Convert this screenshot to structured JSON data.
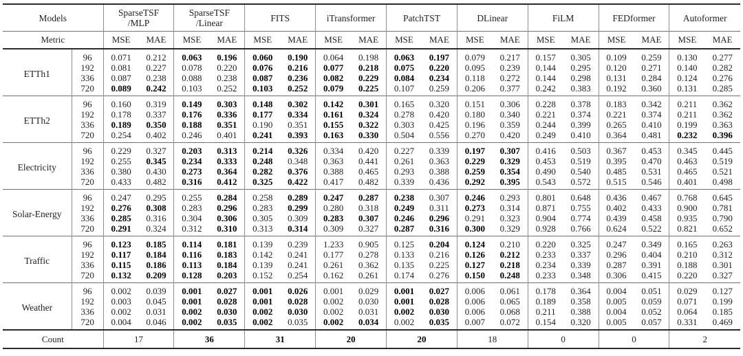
{
  "table": {
    "header": {
      "models_label": "Models",
      "metric_label": "Metric",
      "models": [
        {
          "lines": [
            "SparseTSF",
            "/MLP"
          ]
        },
        {
          "lines": [
            "SparseTSF",
            "/Linear"
          ]
        },
        {
          "lines": [
            "FITS"
          ]
        },
        {
          "lines": [
            "iTransformer"
          ]
        },
        {
          "lines": [
            "PatchTST"
          ]
        },
        {
          "lines": [
            "DLinear"
          ]
        },
        {
          "lines": [
            "FiLM"
          ]
        },
        {
          "lines": [
            "FEDformer"
          ]
        },
        {
          "lines": [
            "Autoformer"
          ]
        }
      ],
      "metrics": [
        "MSE",
        "MAE"
      ]
    },
    "datasets": [
      {
        "name": "ETTh1",
        "rows": [
          {
            "h": "96",
            "v": [
              "0.071",
              "0.212",
              "0.063",
              "0.196",
              "0.060",
              "0.190",
              "0.064",
              "0.198",
              "0.063",
              "0.197",
              "0.079",
              "0.217",
              "0.157",
              "0.305",
              "0.109",
              "0.259",
              "0.130",
              "0.277"
            ],
            "b": "001111001100000000"
          },
          {
            "h": "192",
            "v": [
              "0.081",
              "0.227",
              "0.078",
              "0.220",
              "0.076",
              "0.216",
              "0.077",
              "0.218",
              "0.075",
              "0.220",
              "0.095",
              "0.239",
              "0.144",
              "0.295",
              "0.120",
              "0.271",
              "0.140",
              "0.282"
            ],
            "b": "000011111100000000"
          },
          {
            "h": "336",
            "v": [
              "0.087",
              "0.238",
              "0.088",
              "0.238",
              "0.087",
              "0.236",
              "0.082",
              "0.229",
              "0.084",
              "0.234",
              "0.118",
              "0.272",
              "0.144",
              "0.298",
              "0.131",
              "0.284",
              "0.124",
              "0.276"
            ],
            "b": "000011111100000000"
          },
          {
            "h": "720",
            "v": [
              "0.089",
              "0.242",
              "0.103",
              "0.252",
              "0.103",
              "0.252",
              "0.079",
              "0.225",
              "0.107",
              "0.259",
              "0.206",
              "0.377",
              "0.242",
              "0.383",
              "0.192",
              "0.360",
              "0.131",
              "0.285"
            ],
            "b": "110011110000000000"
          }
        ]
      },
      {
        "name": "ETTh2",
        "rows": [
          {
            "h": "96",
            "v": [
              "0.160",
              "0.319",
              "0.149",
              "0.303",
              "0.148",
              "0.302",
              "0.142",
              "0.301",
              "0.165",
              "0.320",
              "0.151",
              "0.306",
              "0.228",
              "0.378",
              "0.183",
              "0.342",
              "0.211",
              "0.362"
            ],
            "b": "001111110000000000"
          },
          {
            "h": "192",
            "v": [
              "0.178",
              "0.337",
              "0.176",
              "0.336",
              "0.177",
              "0.334",
              "0.161",
              "0.324",
              "0.278",
              "0.420",
              "0.180",
              "0.340",
              "0.221",
              "0.374",
              "0.221",
              "0.374",
              "0.211",
              "0.362"
            ],
            "b": "001111110000000000"
          },
          {
            "h": "336",
            "v": [
              "0.189",
              "0.350",
              "0.188",
              "0.351",
              "0.190",
              "0.351",
              "0.155",
              "0.322",
              "0.303",
              "0.425",
              "0.196",
              "0.359",
              "0.244",
              "0.399",
              "0.265",
              "0.410",
              "0.199",
              "0.363"
            ],
            "b": "111100110000000000"
          },
          {
            "h": "720",
            "v": [
              "0.254",
              "0.402",
              "0.246",
              "0.401",
              "0.241",
              "0.393",
              "0.163",
              "0.330",
              "0.504",
              "0.556",
              "0.270",
              "0.420",
              "0.249",
              "0.410",
              "0.364",
              "0.481",
              "0.232",
              "0.396"
            ],
            "b": "000011110000000011"
          }
        ]
      },
      {
        "name": "Electricity",
        "rows": [
          {
            "h": "96",
            "v": [
              "0.229",
              "0.327",
              "0.203",
              "0.313",
              "0.214",
              "0.326",
              "0.334",
              "0.420",
              "0.227",
              "0.339",
              "0.197",
              "0.307",
              "0.416",
              "0.503",
              "0.367",
              "0.453",
              "0.345",
              "0.445"
            ],
            "b": "001111000011000000"
          },
          {
            "h": "192",
            "v": [
              "0.255",
              "0.345",
              "0.234",
              "0.333",
              "0.248",
              "0.348",
              "0.363",
              "0.441",
              "0.261",
              "0.363",
              "0.229",
              "0.329",
              "0.453",
              "0.519",
              "0.395",
              "0.470",
              "0.463",
              "0.519"
            ],
            "b": "011110000011000000"
          },
          {
            "h": "336",
            "v": [
              "0.380",
              "0.430",
              "0.273",
              "0.364",
              "0.282",
              "0.376",
              "0.388",
              "0.465",
              "0.293",
              "0.388",
              "0.259",
              "0.354",
              "0.490",
              "0.540",
              "0.485",
              "0.531",
              "0.465",
              "0.521"
            ],
            "b": "001111000011000000"
          },
          {
            "h": "720",
            "v": [
              "0.433",
              "0.482",
              "0.316",
              "0.412",
              "0.325",
              "0.422",
              "0.417",
              "0.482",
              "0.339",
              "0.436",
              "0.292",
              "0.395",
              "0.543",
              "0.572",
              "0.515",
              "0.546",
              "0.401",
              "0.498"
            ],
            "b": "001111000011000000"
          }
        ]
      },
      {
        "name": "Solar-Energy",
        "rows": [
          {
            "h": "96",
            "v": [
              "0.247",
              "0.295",
              "0.255",
              "0.284",
              "0.258",
              "0.289",
              "0.247",
              "0.287",
              "0.238",
              "0.307",
              "0.246",
              "0.293",
              "0.801",
              "0.648",
              "0.436",
              "0.467",
              "0.768",
              "0.645"
            ],
            "b": "000101111010000000"
          },
          {
            "h": "192",
            "v": [
              "0.276",
              "0.308",
              "0.283",
              "0.296",
              "0.283",
              "0.299",
              "0.280",
              "0.318",
              "0.249",
              "0.311",
              "0.273",
              "0.314",
              "0.871",
              "0.755",
              "0.402",
              "0.433",
              "0.900",
              "0.781"
            ],
            "b": "110101001010000000"
          },
          {
            "h": "336",
            "v": [
              "0.285",
              "0.316",
              "0.304",
              "0.306",
              "0.305",
              "0.309",
              "0.283",
              "0.307",
              "0.246",
              "0.296",
              "0.291",
              "0.323",
              "0.904",
              "0.774",
              "0.439",
              "0.458",
              "0.935",
              "0.790"
            ],
            "b": "100100111100000000"
          },
          {
            "h": "720",
            "v": [
              "0.291",
              "0.324",
              "0.312",
              "0.310",
              "0.313",
              "0.314",
              "0.309",
              "0.327",
              "0.287",
              "0.316",
              "0.300",
              "0.329",
              "0.928",
              "0.766",
              "0.624",
              "0.522",
              "0.821",
              "0.652"
            ],
            "b": "100101001110000000"
          }
        ]
      },
      {
        "name": "Traffic",
        "rows": [
          {
            "h": "96",
            "v": [
              "0.123",
              "0.185",
              "0.114",
              "0.181",
              "0.139",
              "0.239",
              "1.233",
              "0.905",
              "0.125",
              "0.204",
              "0.124",
              "0.210",
              "0.220",
              "0.325",
              "0.247",
              "0.349",
              "0.165",
              "0.263"
            ],
            "b": "111100000110000000"
          },
          {
            "h": "192",
            "v": [
              "0.117",
              "0.184",
              "0.116",
              "0.183",
              "0.142",
              "0.241",
              "0.177",
              "0.278",
              "0.133",
              "0.216",
              "0.126",
              "0.212",
              "0.233",
              "0.337",
              "0.296",
              "0.404",
              "0.210",
              "0.312"
            ],
            "b": "111100000011000000"
          },
          {
            "h": "336",
            "v": [
              "0.115",
              "0.186",
              "0.113",
              "0.184",
              "0.139",
              "0.241",
              "0.261",
              "0.362",
              "0.135",
              "0.225",
              "0.127",
              "0.218",
              "0.234",
              "0.339",
              "0.287",
              "0.391",
              "0.188",
              "0.301"
            ],
            "b": "111100000011000000"
          },
          {
            "h": "720",
            "v": [
              "0.132",
              "0.209",
              "0.128",
              "0.203",
              "0.152",
              "0.254",
              "0.162",
              "0.261",
              "0.174",
              "0.276",
              "0.150",
              "0.248",
              "0.233",
              "0.348",
              "0.306",
              "0.415",
              "0.220",
              "0.327"
            ],
            "b": "111100000011000000"
          }
        ]
      },
      {
        "name": "Weather",
        "rows": [
          {
            "h": "96",
            "v": [
              "0.002",
              "0.039",
              "0.001",
              "0.027",
              "0.001",
              "0.026",
              "0.001",
              "0.029",
              "0.001",
              "0.027",
              "0.006",
              "0.061",
              "0.178",
              "0.364",
              "0.004",
              "0.051",
              "0.029",
              "0.127"
            ],
            "b": "001111001100000000"
          },
          {
            "h": "192",
            "v": [
              "0.003",
              "0.045",
              "0.001",
              "0.028",
              "0.001",
              "0.028",
              "0.002",
              "0.030",
              "0.001",
              "0.028",
              "0.006",
              "0.065",
              "0.189",
              "0.358",
              "0.005",
              "0.059",
              "0.071",
              "0.199"
            ],
            "b": "001111001100000000"
          },
          {
            "h": "336",
            "v": [
              "0.002",
              "0.031",
              "0.002",
              "0.030",
              "0.002",
              "0.030",
              "0.002",
              "0.031",
              "0.002",
              "0.030",
              "0.006",
              "0.068",
              "0.211",
              "0.388",
              "0.004",
              "0.052",
              "0.064",
              "0.185"
            ],
            "b": "001111001100000000"
          },
          {
            "h": "720",
            "v": [
              "0.004",
              "0.046",
              "0.002",
              "0.035",
              "0.002",
              "0.035",
              "0.002",
              "0.034",
              "0.002",
              "0.035",
              "0.007",
              "0.072",
              "0.154",
              "0.320",
              "0.005",
              "0.057",
              "0.331",
              "0.469"
            ],
            "b": "001110110100000000"
          }
        ]
      }
    ],
    "footer": {
      "label": "Count",
      "values": [
        "17",
        "36",
        "31",
        "20",
        "20",
        "18",
        "0",
        "0",
        "2"
      ],
      "bold": "011110000"
    }
  },
  "colors": {
    "background": "#ffffff",
    "text": "#1f1f1f",
    "rule_heavy": "#2a2a2a",
    "rule_light": "#6e6e6e",
    "vertical_line": "#8d8d8d"
  }
}
